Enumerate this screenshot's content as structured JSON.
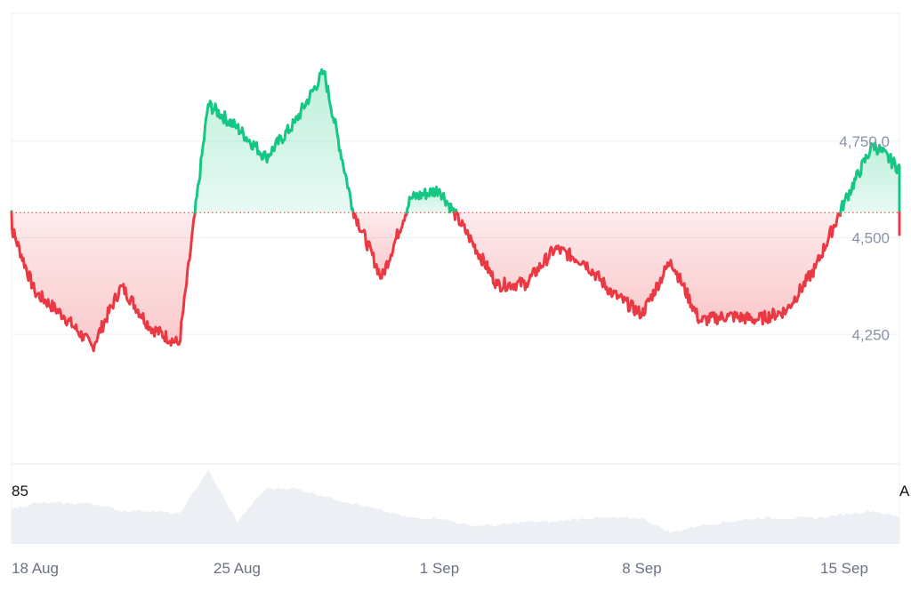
{
  "chart_data": {
    "type": "line",
    "x_tick_labels": [
      "18 Aug",
      "25 Aug",
      "1 Sep",
      "8 Sep",
      "15 Sep"
    ],
    "y_tick_labels": [
      "4,750.0",
      "4,500",
      "4,250"
    ],
    "y_ticks": [
      4750,
      4500,
      4250
    ],
    "ylim": [
      4000,
      5000
    ],
    "baseline": 4565,
    "grid": true,
    "volume_left_label": "85",
    "volume_right_label": "A",
    "colors": {
      "up": "#16c784",
      "down": "#ea3943",
      "up_fill": "#16c784",
      "down_fill": "#ea3943",
      "volume": "#eceff3",
      "grid": "#eef0f3",
      "baseline": "#e05a5a"
    },
    "x": [
      "2025-08-17",
      "2025-08-18",
      "2025-08-19",
      "2025-08-20",
      "2025-08-21",
      "2025-08-22",
      "2025-08-23",
      "2025-08-24",
      "2025-08-25",
      "2025-08-26",
      "2025-08-27",
      "2025-08-28",
      "2025-08-29",
      "2025-08-30",
      "2025-08-31",
      "2025-09-01",
      "2025-09-02",
      "2025-09-03",
      "2025-09-04",
      "2025-09-05",
      "2025-09-06",
      "2025-09-07",
      "2025-09-08",
      "2025-09-09",
      "2025-09-10",
      "2025-09-11",
      "2025-09-12",
      "2025-09-13",
      "2025-09-14",
      "2025-09-15",
      "2025-09-16",
      "2025-09-17",
      "2025-09-18"
    ],
    "values": [
      4568,
      4360,
      4298,
      4218,
      4375,
      4268,
      4225,
      4845,
      4785,
      4708,
      4798,
      4930,
      4575,
      4395,
      4602,
      4625,
      4505,
      4378,
      4382,
      4472,
      4438,
      4355,
      4302,
      4442,
      4285,
      4298,
      4288,
      4312,
      4422,
      4592,
      4742,
      4672,
      4508
    ],
    "volume": [
      0.45,
      0.55,
      0.55,
      0.55,
      0.45,
      0.45,
      0.4,
      1.0,
      0.3,
      0.75,
      0.75,
      0.65,
      0.55,
      0.45,
      0.35,
      0.35,
      0.25,
      0.25,
      0.3,
      0.3,
      0.35,
      0.35,
      0.35,
      0.15,
      0.25,
      0.3,
      0.35,
      0.35,
      0.35,
      0.4,
      0.45,
      0.35,
      0.35
    ]
  }
}
